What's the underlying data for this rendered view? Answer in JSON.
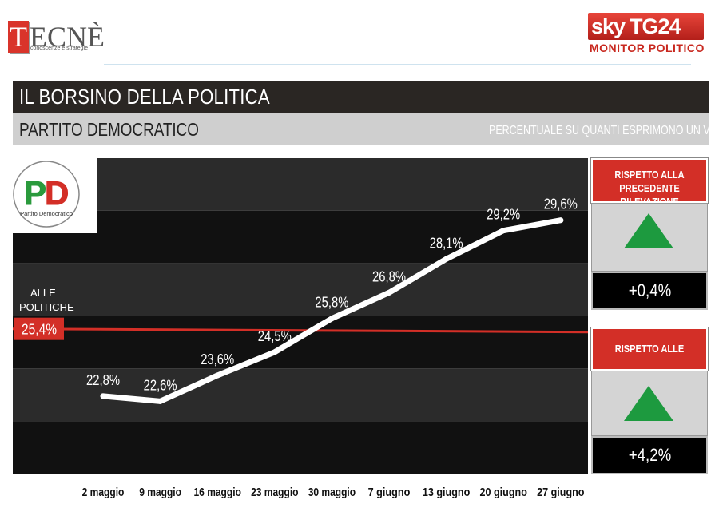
{
  "branding": {
    "tecne_logo": "TECNÈ",
    "tecne_tagline": "conoscenze e strategie",
    "sky_logo": "sky",
    "tg24_logo": "TG24",
    "monitor_label": "MONITOR",
    "politico_label": "POLITICO"
  },
  "header": {
    "title": "IL BORSINO DELLA POLITICA",
    "party": "PARTITO DEMOCRATICO",
    "unit_note": "PERCENTUALE SU QUANTI ESPRIMONO UN VOTO"
  },
  "pd_logo": {
    "letters": "PD",
    "caption": "Partito Democratico",
    "colors": {
      "green": "#2a9a3c",
      "red": "#d32f27",
      "white": "#ffffff"
    }
  },
  "chart_data": {
    "type": "line",
    "categories": [
      "2 maggio",
      "9 maggio",
      "16 maggio",
      "23 maggio",
      "30 maggio",
      "7 giugno",
      "13 giugno",
      "20 giugno",
      "27 giugno"
    ],
    "series": [
      {
        "values": [
          22.8,
          22.6,
          23.6,
          24.5,
          25.8,
          26.8,
          28.1,
          29.2,
          29.6
        ],
        "labels": [
          "22,8%",
          "22,6%",
          "23,6%",
          "24,5%",
          "25,8%",
          "26,8%",
          "28,1%",
          "29,2%",
          "29,6%"
        ],
        "color": "#ffffff"
      }
    ],
    "reference": {
      "label_line1": "ALLE",
      "label_line2": "POLITICHE",
      "value": 25.4,
      "value_label": "25,4%",
      "color": "#d32f27"
    },
    "ylim": [
      19.8,
      32.0
    ],
    "grid": "alternating horizontal bands",
    "band_colors": [
      "#2b2b2b",
      "#111111"
    ]
  },
  "panels": {
    "previous": {
      "title": "RISPETTO ALLA PRECEDENTE RILEVAZIONE",
      "trend": "up",
      "value": "+0,4%"
    },
    "elections": {
      "title": "RISPETTO ALLE POLITICHE",
      "trend": "up",
      "value": "+4,2%"
    }
  }
}
